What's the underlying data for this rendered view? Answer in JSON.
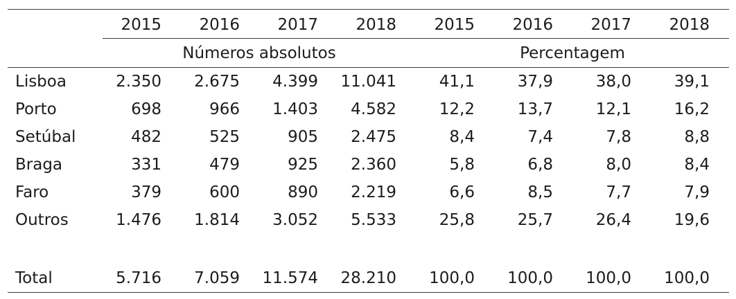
{
  "table": {
    "group_headers": [
      {
        "label": "Números absolutos"
      },
      {
        "label": "Percentagem"
      }
    ],
    "year_headers": [
      "2015",
      "2016",
      "2017",
      "2018",
      "2015",
      "2016",
      "2017",
      "2018"
    ],
    "rows": [
      {
        "label": "Lisboa",
        "values": [
          "2.350",
          "2.675",
          "4.399",
          "11.041",
          "41,1",
          "37,9",
          "38,0",
          "39,1"
        ]
      },
      {
        "label": "Porto",
        "values": [
          "698",
          "966",
          "1.403",
          "4.582",
          "12,2",
          "13,7",
          "12,1",
          "16,2"
        ]
      },
      {
        "label": "Setúbal",
        "values": [
          "482",
          "525",
          "905",
          "2.475",
          "8,4",
          "7,4",
          "7,8",
          "8,8"
        ]
      },
      {
        "label": "Braga",
        "values": [
          "331",
          "479",
          "925",
          "2.360",
          "5,8",
          "6,8",
          "8,0",
          "8,4"
        ]
      },
      {
        "label": "Faro",
        "values": [
          "379",
          "600",
          "890",
          "2.219",
          "6,6",
          "8,5",
          "7,7",
          "7,9"
        ]
      },
      {
        "label": "Outros",
        "values": [
          "1.476",
          "1.814",
          "3.052",
          "5.533",
          "25,8",
          "25,7",
          "26,4",
          "19,6"
        ]
      }
    ],
    "total_row": {
      "label": "Total",
      "values": [
        "5.716",
        "7.059",
        "11.574",
        "28.210",
        "100,0",
        "100,0",
        "100,0",
        "100,0"
      ]
    },
    "colors": {
      "text": "#1c1c1c",
      "rule": "#3c3c3c",
      "background": "#ffffff"
    }
  }
}
